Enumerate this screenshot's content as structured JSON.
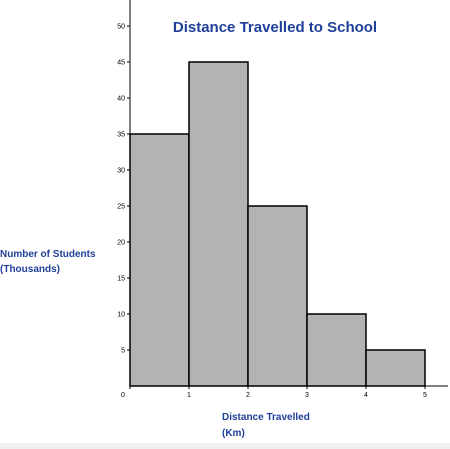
{
  "chart_data": {
    "type": "bar",
    "title": "Distance Travelled to School",
    "xlabel_lines": [
      "Distance Travelled",
      "(Km)"
    ],
    "ylabel_lines": [
      "Number of Students",
      "(Thousands)"
    ],
    "bins": [
      {
        "x0": 0,
        "x1": 1,
        "value": 35
      },
      {
        "x0": 1,
        "x1": 2,
        "value": 45
      },
      {
        "x0": 2,
        "x1": 3,
        "value": 25
      },
      {
        "x0": 3,
        "x1": 4,
        "value": 10
      },
      {
        "x0": 4,
        "x1": 5,
        "value": 5
      }
    ],
    "x_ticks": [
      0,
      1,
      2,
      3,
      4,
      5
    ],
    "y_ticks": [
      5,
      10,
      15,
      20,
      25,
      30,
      35,
      40,
      45,
      50
    ],
    "xlim": [
      0,
      5
    ],
    "ylim": [
      0,
      53
    ],
    "grid": false,
    "bar_color": "#b3b3b3",
    "bar_edge_color": "#000000",
    "text_color": "#1f3f99"
  }
}
